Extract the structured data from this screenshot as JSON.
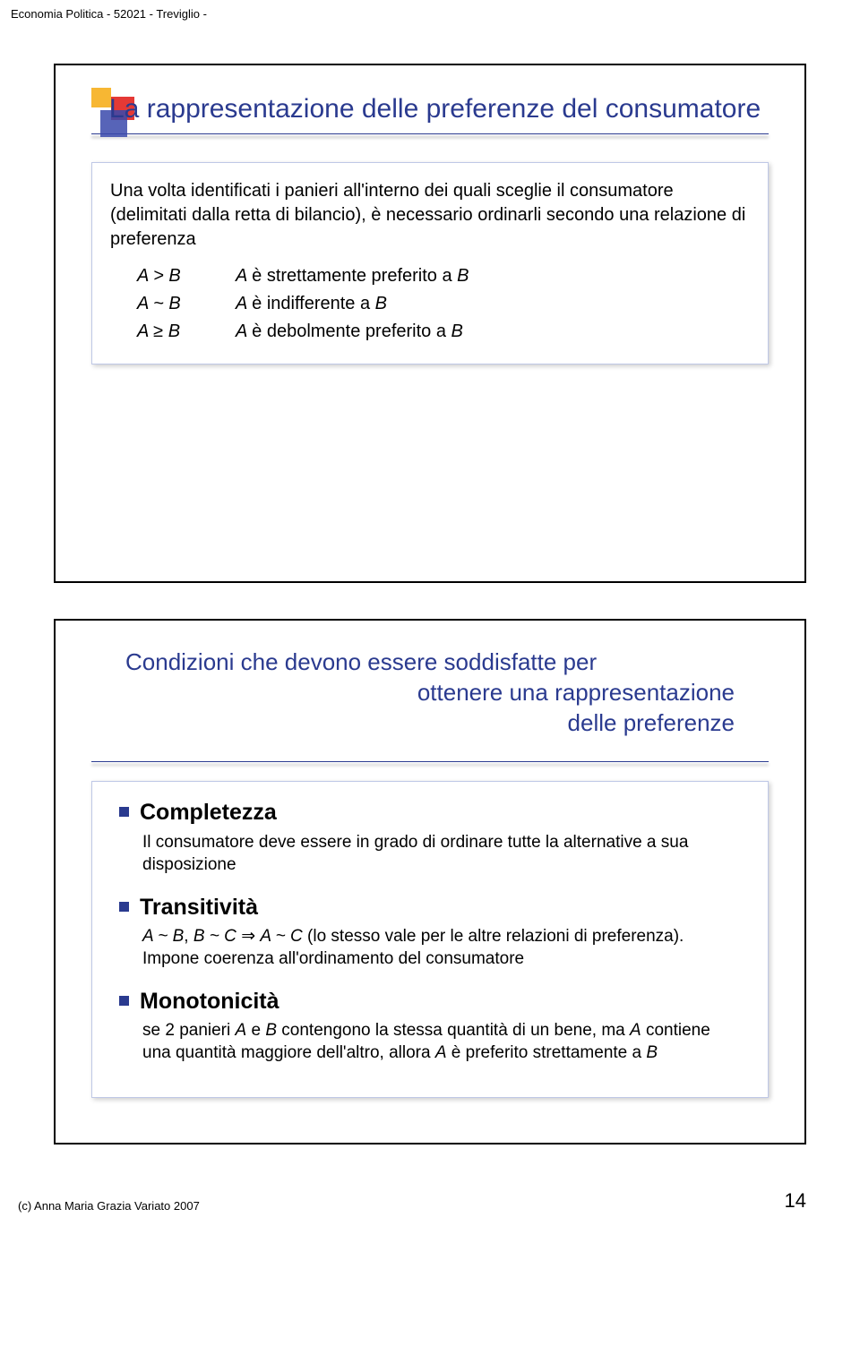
{
  "header": "Economia Politica - 52021 - Treviglio -",
  "slide1": {
    "title": "La rappresentazione delle preferenze del consumatore",
    "intro": "Una volta identificati i panieri all'interno dei quali sceglie il consumatore (delimitati dalla retta di bilancio), è necessario ordinarli secondo una relazione di preferenza",
    "rows": [
      {
        "left": "A > B",
        "right_pre": "A ",
        "right_mid": "è strettamente preferito a ",
        "right_post": "B"
      },
      {
        "left": "A ~ B",
        "right_pre": "A ",
        "right_mid": "è indifferente a ",
        "right_post": "B"
      },
      {
        "left": "A ≥ B",
        "right_pre": "A ",
        "right_mid": "è debolmente preferito a ",
        "right_post": "B"
      }
    ]
  },
  "slide2": {
    "title_l1": "Condizioni che devono essere soddisfatte per",
    "title_l2": "ottenere una rappresentazione",
    "title_l3": "delle preferenze",
    "items": [
      {
        "title": "Completezza",
        "body_plain": "Il consumatore deve essere in grado di ordinare tutte la alternative a sua disposizione"
      },
      {
        "title": "Transitività",
        "body_html": "<span class='it'>A ~ B</span>, <span class='it'>B ~ C</span> ⇒ <span class='it'>A ~ C</span>  (lo stesso vale per le altre relazioni di preferenza). Impone coerenza all'ordinamento del consumatore"
      },
      {
        "title": "Monotonicità",
        "body_html": "se 2 panieri <span class='it'>A</span> e <span class='it'>B</span> contengono la stessa quantità di un bene, ma <span class='it'>A</span> contiene una quantità maggiore dell'altro, allora <span class='it'>A</span> è preferito strettamente a <span class='it'>B</span>"
      }
    ]
  },
  "footer": {
    "copyright": "(c) Anna Maria Grazia Variato 2007",
    "page": "14"
  },
  "colors": {
    "title": "#2a3a8f",
    "bullet": "#2a3a8f",
    "decor_yellow": "#f7b733",
    "decor_red": "#e53935",
    "decor_blue": "#3949ab"
  }
}
